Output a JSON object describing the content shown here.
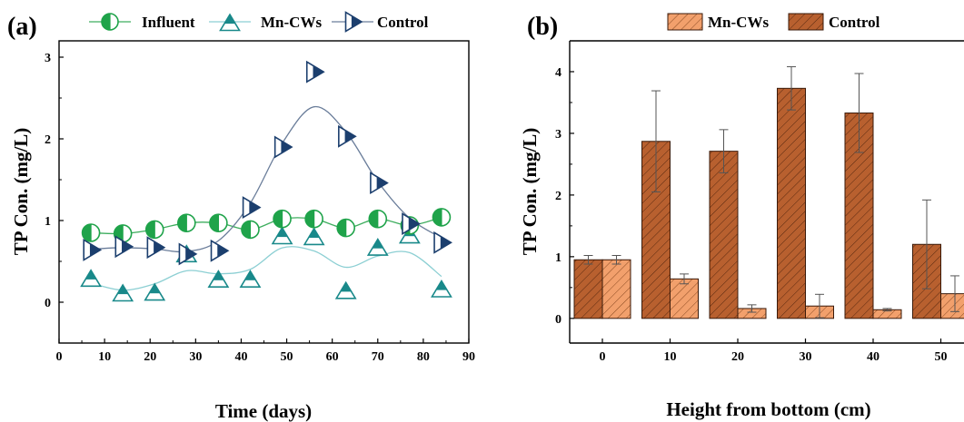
{
  "colors": {
    "influent": "#1fa34a",
    "mn_cws": "#19898a",
    "control_marker": "#1c3f6e",
    "control_line": "#6a7d9a",
    "mn_line": "#8ccfd3",
    "influent_line": "#3fae5f",
    "bar_mn": "#f2a06c",
    "bar_control": "#b8602f",
    "errorbar": "#555555"
  },
  "chart_data": [
    {
      "type": "line",
      "panel_label": "(a)",
      "xlabel": "Time (days)",
      "ylabel": "TP Con. (mg/L)",
      "xlim": [
        0,
        90
      ],
      "ylim": [
        -0.5,
        3.2
      ],
      "xticks": [
        "0",
        "10",
        "20",
        "30",
        "40",
        "50",
        "60",
        "70",
        "80",
        "90"
      ],
      "yticks": [
        "0",
        "1",
        "2",
        "3"
      ],
      "legend_position": "top",
      "series": [
        {
          "name": "Influent",
          "marker": "half-filled circle",
          "x": [
            7,
            14,
            21,
            28,
            35,
            42,
            49,
            56,
            63,
            70,
            77,
            84
          ],
          "y": [
            0.85,
            0.84,
            0.89,
            0.97,
            0.97,
            0.89,
            1.02,
            1.02,
            0.91,
            1.02,
            0.94,
            1.04
          ]
        },
        {
          "name": "Mn-CWs",
          "marker": "half-filled triangle up",
          "x": [
            7,
            14,
            21,
            28,
            35,
            42,
            49,
            56,
            63,
            70,
            77,
            84
          ],
          "y": [
            0.28,
            0.1,
            0.11,
            0.58,
            0.27,
            0.27,
            0.8,
            0.79,
            0.13,
            0.66,
            0.81,
            0.15
          ]
        },
        {
          "name": "Control",
          "marker": "half-filled triangle right",
          "x": [
            7,
            14,
            21,
            28,
            35,
            42,
            49,
            56,
            63,
            70,
            77,
            84
          ],
          "y": [
            0.64,
            0.68,
            0.67,
            0.59,
            0.63,
            1.16,
            1.9,
            2.82,
            2.03,
            1.46,
            0.96,
            0.73
          ]
        }
      ]
    },
    {
      "type": "bar",
      "panel_label": "(b)",
      "xlabel": "Height from bottom (cm)",
      "ylabel": "TP Con. (mg/L)",
      "categories": [
        "0",
        "10",
        "20",
        "30",
        "40",
        "50"
      ],
      "ylim": [
        -0.4,
        4.5
      ],
      "yticks": [
        "0",
        "1",
        "2",
        "3",
        "4"
      ],
      "legend_position": "top",
      "series": [
        {
          "name": "Mn-CWs",
          "values": [
            0.95,
            0.64,
            0.16,
            0.2,
            0.14,
            0.4
          ],
          "errors": [
            0.07,
            0.08,
            0.06,
            0.19,
            0.02,
            0.29
          ]
        },
        {
          "name": "Control",
          "values": [
            0.95,
            2.87,
            2.71,
            3.73,
            3.33,
            1.2
          ],
          "errors": [
            0.07,
            0.82,
            0.35,
            0.35,
            0.64,
            0.72
          ]
        }
      ]
    }
  ]
}
